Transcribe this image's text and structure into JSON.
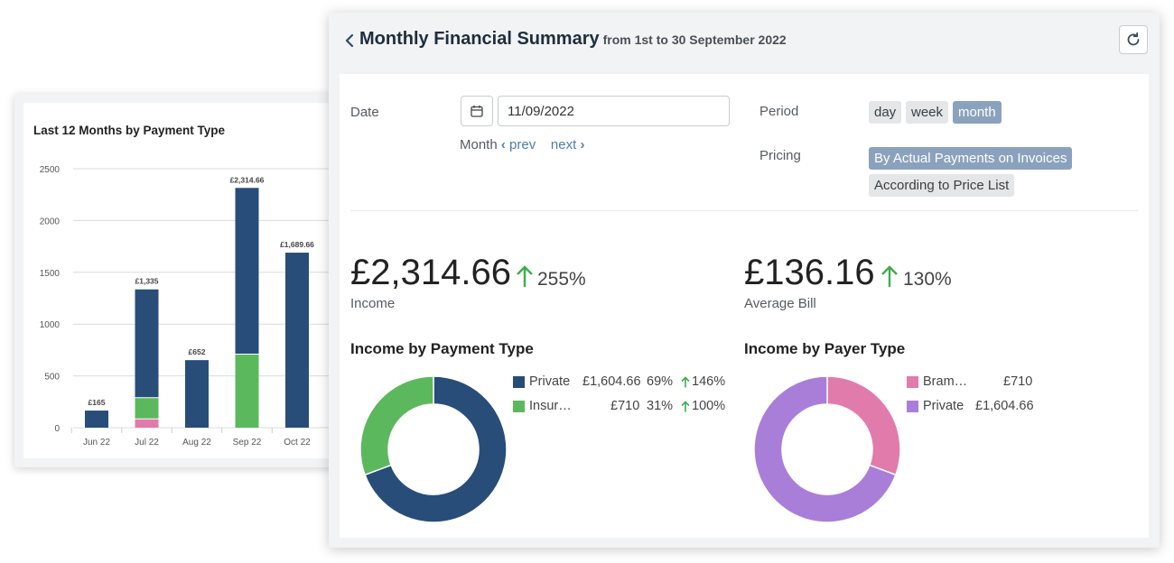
{
  "bar_chart": {
    "title": "Last 12 Months by Payment Type",
    "colors": {
      "private": "#284d79",
      "insurance": "#5cb85c",
      "other": "#e17bab",
      "grid": "#dddddd"
    }
  },
  "chart_data": {
    "type": "bar",
    "stacked": true,
    "title": "Last 12 Months by Payment Type",
    "categories": [
      "Jun 22",
      "Jul 22",
      "Aug 22",
      "Sep 22",
      "Oct 22"
    ],
    "series": [
      {
        "values": [
          0,
          85,
          0,
          0,
          0
        ],
        "color": "#e17bab"
      },
      {
        "values": [
          0,
          205,
          0,
          710,
          0
        ],
        "color": "#5cb85c"
      },
      {
        "values": [
          165,
          1045,
          652,
          1604.66,
          1689.66
        ],
        "color": "#284d79"
      }
    ],
    "totals_labels": [
      "£165",
      "£1,335",
      "£652",
      "£2,314.66",
      "£1,689.66"
    ],
    "yticks": [
      0,
      500,
      1000,
      1500,
      2000,
      2500
    ],
    "ylim": [
      0,
      2500
    ],
    "grid": true
  },
  "summary": {
    "title": "Monthly Financial Summary",
    "subtitle": "from 1st to 30 September 2022",
    "date_label": "Date",
    "date_value": "11/09/2022",
    "month_label": "Month",
    "prev": "prev",
    "next": "next",
    "period_label": "Period",
    "period_options": [
      "day",
      "week",
      "month"
    ],
    "period_selected": "month",
    "pricing_label": "Pricing",
    "pricing_options": [
      "By Actual Payments on Invoices",
      "According to Price List"
    ],
    "pricing_selected": "By Actual Payments on Invoices",
    "income": {
      "value": "£2,314.66",
      "change": "255%",
      "label": "Income"
    },
    "average_bill": {
      "value": "£136.16",
      "change": "130%",
      "label": "Average Bill"
    },
    "up_color": "#3cae4a"
  },
  "income_by_payment": {
    "title": "Income by Payment Type",
    "items": [
      {
        "name": "Private",
        "amount": "£1,604.66",
        "share": "69%",
        "change": "146%",
        "color": "#284d79",
        "value": 1604.66
      },
      {
        "name": "Insur…",
        "amount": "£710",
        "share": "31%",
        "change": "100%",
        "color": "#5cb85c",
        "value": 710
      }
    ]
  },
  "income_by_payer": {
    "title": "Income by Payer Type",
    "items": [
      {
        "name": "Bram…",
        "amount": "£710",
        "color": "#e17bab",
        "value": 710
      },
      {
        "name": "Private",
        "amount": "£1,604.66",
        "color": "#a97ed9",
        "value": 1604.66
      }
    ]
  }
}
